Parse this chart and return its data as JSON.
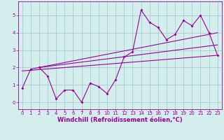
{
  "x": [
    0,
    1,
    2,
    3,
    4,
    5,
    6,
    7,
    8,
    9,
    10,
    11,
    12,
    13,
    14,
    15,
    16,
    17,
    18,
    19,
    20,
    21,
    22,
    23
  ],
  "y": [
    0.8,
    1.9,
    2.0,
    1.5,
    0.2,
    0.7,
    0.7,
    0.0,
    1.1,
    0.9,
    0.5,
    1.3,
    2.6,
    2.9,
    5.3,
    4.6,
    4.3,
    3.6,
    3.9,
    4.7,
    4.4,
    5.0,
    4.0,
    2.7
  ],
  "line_color": "#990099",
  "bg_color": "#d4eeee",
  "grid_color": "#aacccc",
  "axis_color": "#990099",
  "xlabel": "Windchill (Refroidissement éolien,°C)",
  "xlabel_fontsize": 6,
  "tick_fontsize": 5,
  "ylim": [
    -0.4,
    5.8
  ],
  "yticks": [
    0,
    1,
    2,
    3,
    4,
    5
  ],
  "xlim": [
    -0.5,
    23.5
  ],
  "figsize": [
    3.2,
    2.0
  ],
  "dpi": 100,
  "trend_lines": [
    {
      "x0": 2,
      "y0": 2.0,
      "x1": 23,
      "y1": 4.0
    },
    {
      "x0": 2,
      "y0": 2.0,
      "x1": 23,
      "y1": 3.3
    },
    {
      "x0": 0,
      "y0": 1.8,
      "x1": 23,
      "y1": 2.7
    }
  ]
}
